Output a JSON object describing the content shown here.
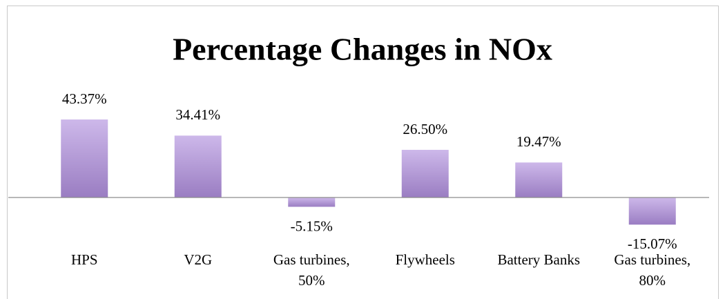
{
  "chart_data": {
    "type": "bar",
    "title": "Percentage Changes in NOx",
    "categories": [
      "HPS",
      "V2G",
      "Gas turbines, 50%",
      "Flywheels",
      "Battery Banks",
      "Gas turbines, 80%"
    ],
    "values": [
      43.37,
      34.41,
      -5.15,
      26.5,
      19.47,
      -15.07
    ],
    "value_labels": [
      "43.37%",
      "34.41%",
      "-5.15%",
      "26.50%",
      "19.47%",
      "-15.07%"
    ],
    "color": "#b49ad8",
    "ylim": [
      -30,
      60
    ]
  }
}
